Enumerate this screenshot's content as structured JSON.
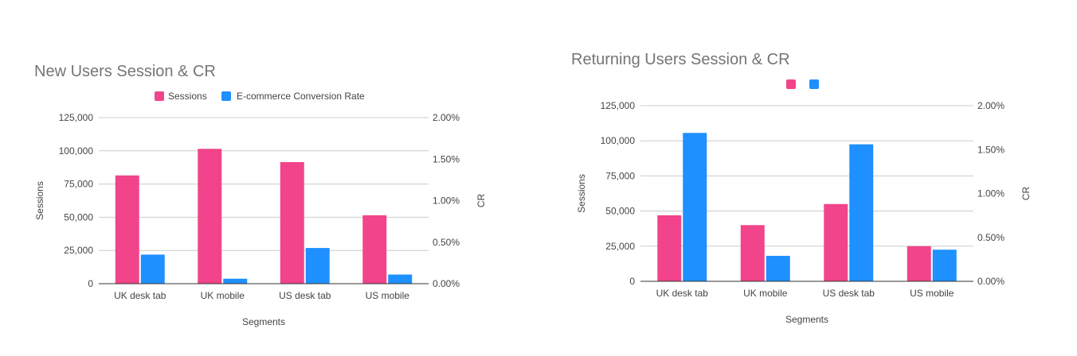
{
  "colors": {
    "sessions": "#f2448a",
    "cr": "#1e90ff",
    "grid": "#cccccc",
    "axis": "#333333",
    "text": "#444444",
    "title": "#757575"
  },
  "chart_data": [
    {
      "type": "bar",
      "title": "New Users Session & CR",
      "xlabel": "Segments",
      "ylabel": "Sessions",
      "y2label": "CR",
      "categories": [
        "UK desk tab",
        "UK mobile",
        "US desk tab",
        "US mobile"
      ],
      "series": [
        {
          "name": "Sessions",
          "axis": "left",
          "values": [
            81500,
            101500,
            91500,
            51500
          ]
        },
        {
          "name": "E-commerce Conversion Rate",
          "axis": "right",
          "values": [
            0.35,
            0.06,
            0.43,
            0.11
          ]
        }
      ],
      "ylim": [
        0,
        125000
      ],
      "yticks": [
        "0",
        "25,000",
        "50,000",
        "75,000",
        "100,000",
        "125,000"
      ],
      "y2lim": [
        0,
        2.0
      ],
      "y2ticks": [
        "0.00%",
        "0.50%",
        "1.00%",
        "1.50%",
        "2.00%"
      ],
      "legend": "top",
      "grid": true
    },
    {
      "type": "bar",
      "title": "Returning Users Session & CR",
      "xlabel": "Segments",
      "ylabel": "Sessions",
      "y2label": "CR",
      "categories": [
        "UK desk tab",
        "UK mobile",
        "US desk tab",
        "US mobile"
      ],
      "series": [
        {
          "axis": "left",
          "values": [
            47000,
            40000,
            55000,
            25000
          ]
        },
        {
          "axis": "right",
          "values": [
            1.69,
            0.29,
            1.56,
            0.36
          ]
        }
      ],
      "ylim": [
        0,
        125000
      ],
      "yticks": [
        "0",
        "25,000",
        "50,000",
        "75,000",
        "100,000",
        "125,000"
      ],
      "y2lim": [
        0,
        2.0
      ],
      "y2ticks": [
        "0.00%",
        "0.50%",
        "1.00%",
        "1.50%",
        "2.00%"
      ],
      "legend": "top",
      "grid": true
    }
  ]
}
